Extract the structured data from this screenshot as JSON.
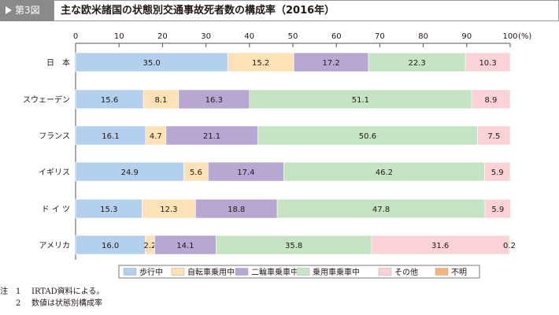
{
  "header": {
    "badge": "第3図",
    "title": "主な欧米諸国の状態別交通事故死者数の構成率（2016年）"
  },
  "chart_data": {
    "type": "bar",
    "orientation": "horizontal",
    "stacked": true,
    "xlim": [
      0,
      100
    ],
    "ticks": [
      "0",
      "10",
      "20",
      "30",
      "40",
      "50",
      "60",
      "70",
      "80",
      "90",
      "100"
    ],
    "unit": "(%)",
    "grid": false,
    "legend_position": "bottom",
    "categories": [
      "日　本",
      "スウェーデン",
      "フランス",
      "イギリス",
      "ド イ ツ",
      "アメリカ"
    ],
    "series": [
      {
        "name": "歩行中",
        "color": "#b3d1ef",
        "values": [
          35.0,
          15.6,
          16.1,
          24.9,
          15.3,
          16.0
        ],
        "labels": [
          "35.0",
          "15.6",
          "16.1",
          "24.9",
          "15.3",
          "16.0"
        ]
      },
      {
        "name": "自転車乗用中",
        "color": "#fde2b8",
        "values": [
          15.2,
          8.1,
          4.7,
          5.6,
          12.3,
          2.2
        ],
        "labels": [
          "15.2",
          "8.1",
          "4.7",
          "5.6",
          "12.3",
          "2.2"
        ]
      },
      {
        "name": "二輪車乗車中",
        "color": "#b6a8d3",
        "values": [
          17.2,
          16.3,
          21.1,
          17.4,
          18.8,
          14.1
        ],
        "labels": [
          "17.2",
          "16.3",
          "21.1",
          "17.4",
          "18.8",
          "14.1"
        ]
      },
      {
        "name": "乗用車乗車中",
        "color": "#c5e4c3",
        "values": [
          22.3,
          51.1,
          50.6,
          46.2,
          47.8,
          35.8
        ],
        "labels": [
          "22.3",
          "51.1",
          "50.6",
          "46.2",
          "47.8",
          "35.8"
        ]
      },
      {
        "name": "その他",
        "color": "#fad2d8",
        "values": [
          10.3,
          8.9,
          7.5,
          5.9,
          5.9,
          31.6
        ],
        "labels": [
          "10.3",
          "8.9",
          "7.5",
          "5.9",
          "5.9",
          "31.6"
        ]
      },
      {
        "name": "不明",
        "color": "#f5b57a",
        "values": [
          0,
          0,
          0,
          0,
          0,
          0.2
        ],
        "labels": [
          "",
          "",
          "",
          "",
          "",
          "0.2"
        ]
      }
    ]
  },
  "notes": [
    {
      "label": "注",
      "num": "1",
      "text": "IRTAD資料による。"
    },
    {
      "label": "",
      "num": "2",
      "text": "数値は状態別構成率"
    }
  ]
}
